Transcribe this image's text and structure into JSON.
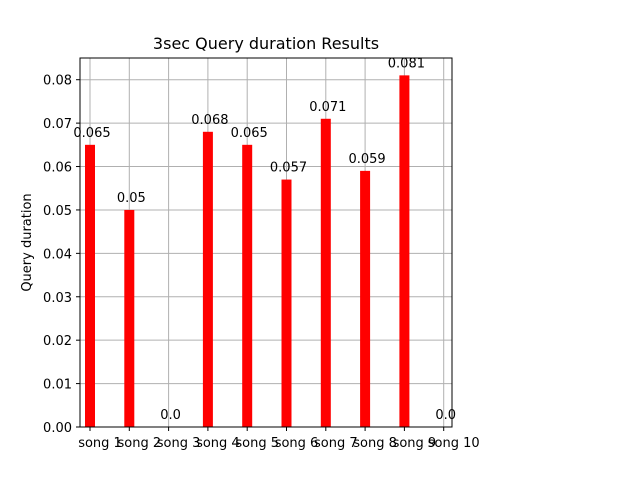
{
  "chart_data": {
    "type": "bar",
    "title": "3sec Query duration Results",
    "xlabel": "",
    "ylabel": "Query duration",
    "categories": [
      "song 1",
      "song 2",
      "song 3",
      "song 4",
      "song 5",
      "song 6",
      "song 7",
      "song 8",
      "song 9",
      "song 10"
    ],
    "values": [
      0.065,
      0.05,
      0.0,
      0.068,
      0.065,
      0.057,
      0.071,
      0.059,
      0.081,
      0.0
    ],
    "value_labels": [
      "0.065",
      "0.05",
      "0.0",
      "0.068",
      "0.065",
      "0.057",
      "0.071",
      "0.059",
      "0.081",
      "0.0"
    ],
    "ylim": [
      0,
      0.085
    ],
    "yticks": [
      0.0,
      0.01,
      0.02,
      0.03,
      0.04,
      0.05,
      0.06,
      0.07,
      0.08
    ],
    "ytick_labels": [
      "0.00",
      "0.01",
      "0.02",
      "0.03",
      "0.04",
      "0.05",
      "0.06",
      "0.07",
      "0.08"
    ],
    "grid": true,
    "bar_color": "#ff0000",
    "grid_color": "#b0b0b0"
  }
}
